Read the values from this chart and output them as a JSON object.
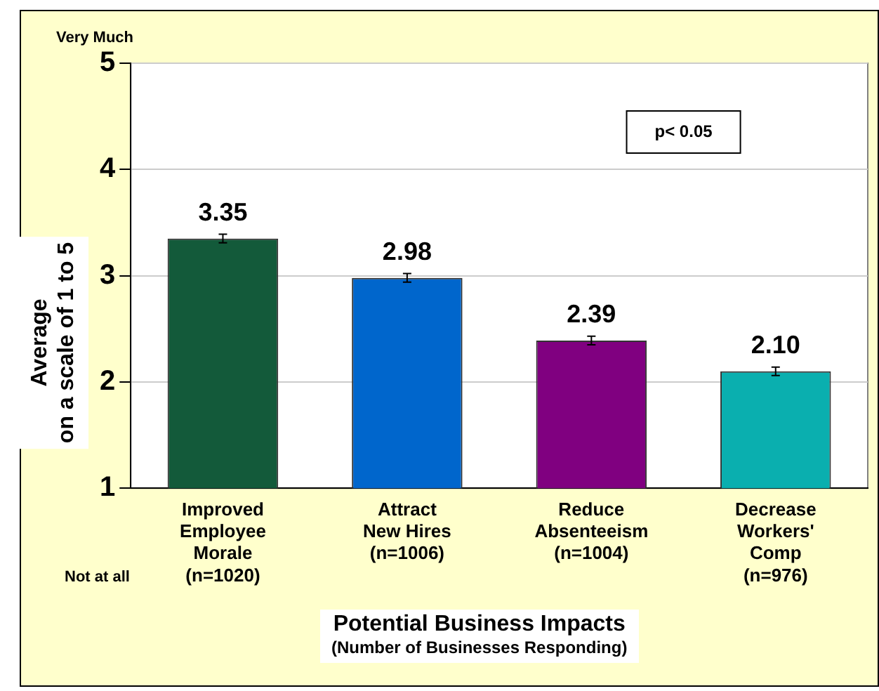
{
  "chart_data": {
    "type": "bar",
    "categories": [
      "Improved\nEmployee\nMorale\n(n=1020)",
      "Attract\nNew Hires\n(n=1006)",
      "Reduce\nAbsenteeism\n(n=1004)",
      "Decrease\nWorkers'\nComp\n(n=976)"
    ],
    "values": [
      3.35,
      2.98,
      2.39,
      2.1
    ],
    "colors": [
      "#135a3a",
      "#0066cc",
      "#800080",
      "#0aafaf"
    ],
    "errors": [
      0.04,
      0.04,
      0.04,
      0.04
    ],
    "value_labels": [
      "3.35",
      "2.98",
      "2.39",
      "2.10"
    ],
    "xlabel": "Potential Business Impacts\n(Number of Businesses Responding)",
    "ylabel": "Average\non a scale of 1 to 5",
    "ylim": [
      1,
      5
    ],
    "yticks": [
      1,
      2,
      3,
      4,
      5
    ],
    "grid": "y",
    "legend": false,
    "annotations": [
      "Very Much",
      "Not at all",
      "p< 0.05"
    ]
  }
}
